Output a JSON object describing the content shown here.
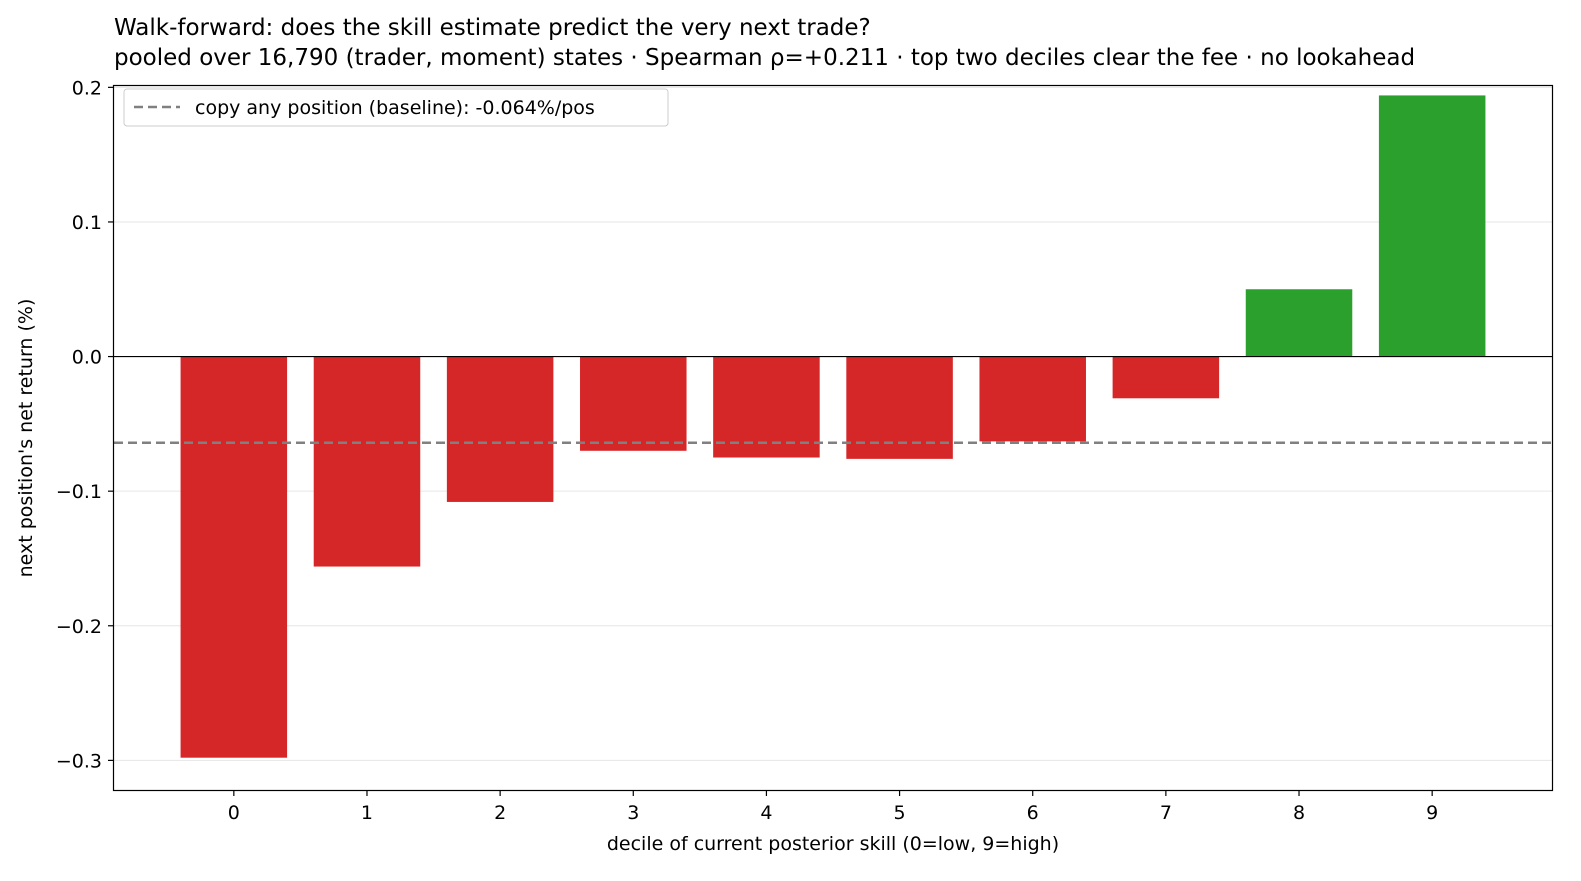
{
  "chart_data": {
    "type": "bar",
    "title": "Walk-forward: does the skill estimate predict the very next trade?",
    "subtitle": "pooled over 16,790 (trader, moment) states · Spearman ρ=+0.211 · top two deciles clear the fee · no lookahead",
    "xlabel": "decile of current posterior skill (0=low, 9=high)",
    "ylabel": "next position's net return (%)",
    "categories": [
      "0",
      "1",
      "2",
      "3",
      "4",
      "5",
      "6",
      "7",
      "8",
      "9"
    ],
    "values": [
      -0.298,
      -0.156,
      -0.108,
      -0.07,
      -0.075,
      -0.076,
      -0.063,
      -0.031,
      0.05,
      0.194
    ],
    "ylim": [
      -0.322,
      0.201
    ],
    "yticks": [
      0.2,
      0.1,
      0.0,
      -0.1,
      -0.2,
      -0.3
    ],
    "ytick_labels": [
      "0.2",
      "0.1",
      "0.0",
      "−0.1",
      "−0.2",
      "−0.3"
    ],
    "grid": "y",
    "positive_color": "#2ca02c",
    "negative_color": "#d62728",
    "baseline": {
      "value": -0.064,
      "label": "copy any position (baseline): -0.064%/pos",
      "color": "#808080",
      "style": "dashed"
    },
    "legend_position": "top-left"
  }
}
